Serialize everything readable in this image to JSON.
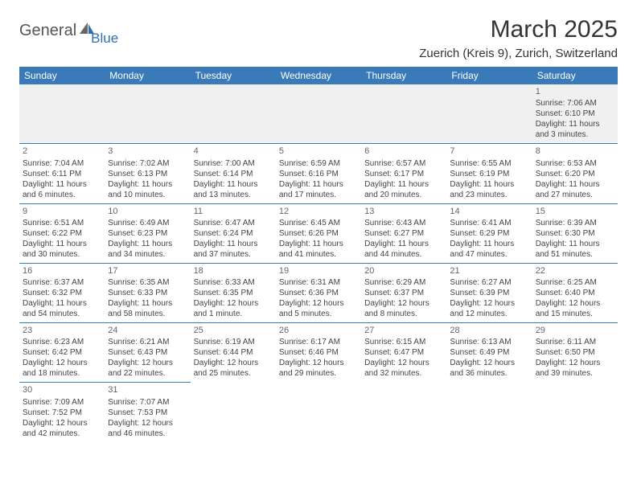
{
  "logo": {
    "text1": "General",
    "text2": "Blue"
  },
  "title": "March 2025",
  "location": "Zuerich (Kreis 9), Zurich, Switzerland",
  "colors": {
    "header_bg": "#3a7ab8",
    "header_fg": "#ffffff",
    "row0_bg": "#f0f0f0",
    "border": "#3a7ab8",
    "text": "#444444",
    "logo_gray": "#666666",
    "logo_blue": "#2d6fb0"
  },
  "day_headers": [
    "Sunday",
    "Monday",
    "Tuesday",
    "Wednesday",
    "Thursday",
    "Friday",
    "Saturday"
  ],
  "weeks": [
    [
      null,
      null,
      null,
      null,
      null,
      null,
      {
        "n": "1",
        "sr": "7:06 AM",
        "ss": "6:10 PM",
        "dl": "11 hours and 3 minutes."
      }
    ],
    [
      {
        "n": "2",
        "sr": "7:04 AM",
        "ss": "6:11 PM",
        "dl": "11 hours and 6 minutes."
      },
      {
        "n": "3",
        "sr": "7:02 AM",
        "ss": "6:13 PM",
        "dl": "11 hours and 10 minutes."
      },
      {
        "n": "4",
        "sr": "7:00 AM",
        "ss": "6:14 PM",
        "dl": "11 hours and 13 minutes."
      },
      {
        "n": "5",
        "sr": "6:59 AM",
        "ss": "6:16 PM",
        "dl": "11 hours and 17 minutes."
      },
      {
        "n": "6",
        "sr": "6:57 AM",
        "ss": "6:17 PM",
        "dl": "11 hours and 20 minutes."
      },
      {
        "n": "7",
        "sr": "6:55 AM",
        "ss": "6:19 PM",
        "dl": "11 hours and 23 minutes."
      },
      {
        "n": "8",
        "sr": "6:53 AM",
        "ss": "6:20 PM",
        "dl": "11 hours and 27 minutes."
      }
    ],
    [
      {
        "n": "9",
        "sr": "6:51 AM",
        "ss": "6:22 PM",
        "dl": "11 hours and 30 minutes."
      },
      {
        "n": "10",
        "sr": "6:49 AM",
        "ss": "6:23 PM",
        "dl": "11 hours and 34 minutes."
      },
      {
        "n": "11",
        "sr": "6:47 AM",
        "ss": "6:24 PM",
        "dl": "11 hours and 37 minutes."
      },
      {
        "n": "12",
        "sr": "6:45 AM",
        "ss": "6:26 PM",
        "dl": "11 hours and 41 minutes."
      },
      {
        "n": "13",
        "sr": "6:43 AM",
        "ss": "6:27 PM",
        "dl": "11 hours and 44 minutes."
      },
      {
        "n": "14",
        "sr": "6:41 AM",
        "ss": "6:29 PM",
        "dl": "11 hours and 47 minutes."
      },
      {
        "n": "15",
        "sr": "6:39 AM",
        "ss": "6:30 PM",
        "dl": "11 hours and 51 minutes."
      }
    ],
    [
      {
        "n": "16",
        "sr": "6:37 AM",
        "ss": "6:32 PM",
        "dl": "11 hours and 54 minutes."
      },
      {
        "n": "17",
        "sr": "6:35 AM",
        "ss": "6:33 PM",
        "dl": "11 hours and 58 minutes."
      },
      {
        "n": "18",
        "sr": "6:33 AM",
        "ss": "6:35 PM",
        "dl": "12 hours and 1 minute."
      },
      {
        "n": "19",
        "sr": "6:31 AM",
        "ss": "6:36 PM",
        "dl": "12 hours and 5 minutes."
      },
      {
        "n": "20",
        "sr": "6:29 AM",
        "ss": "6:37 PM",
        "dl": "12 hours and 8 minutes."
      },
      {
        "n": "21",
        "sr": "6:27 AM",
        "ss": "6:39 PM",
        "dl": "12 hours and 12 minutes."
      },
      {
        "n": "22",
        "sr": "6:25 AM",
        "ss": "6:40 PM",
        "dl": "12 hours and 15 minutes."
      }
    ],
    [
      {
        "n": "23",
        "sr": "6:23 AM",
        "ss": "6:42 PM",
        "dl": "12 hours and 18 minutes."
      },
      {
        "n": "24",
        "sr": "6:21 AM",
        "ss": "6:43 PM",
        "dl": "12 hours and 22 minutes."
      },
      {
        "n": "25",
        "sr": "6:19 AM",
        "ss": "6:44 PM",
        "dl": "12 hours and 25 minutes."
      },
      {
        "n": "26",
        "sr": "6:17 AM",
        "ss": "6:46 PM",
        "dl": "12 hours and 29 minutes."
      },
      {
        "n": "27",
        "sr": "6:15 AM",
        "ss": "6:47 PM",
        "dl": "12 hours and 32 minutes."
      },
      {
        "n": "28",
        "sr": "6:13 AM",
        "ss": "6:49 PM",
        "dl": "12 hours and 36 minutes."
      },
      {
        "n": "29",
        "sr": "6:11 AM",
        "ss": "6:50 PM",
        "dl": "12 hours and 39 minutes."
      }
    ],
    [
      {
        "n": "30",
        "sr": "7:09 AM",
        "ss": "7:52 PM",
        "dl": "12 hours and 42 minutes."
      },
      {
        "n": "31",
        "sr": "7:07 AM",
        "ss": "7:53 PM",
        "dl": "12 hours and 46 minutes."
      },
      null,
      null,
      null,
      null,
      null
    ]
  ],
  "labels": {
    "sunrise": "Sunrise: ",
    "sunset": "Sunset: ",
    "daylight": "Daylight: "
  }
}
